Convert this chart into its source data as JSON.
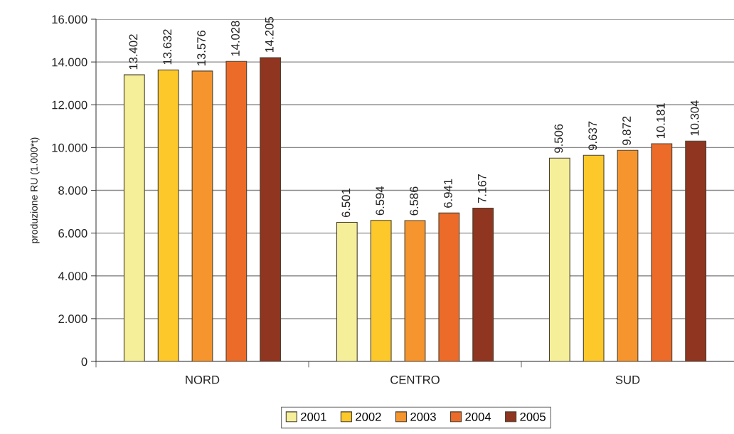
{
  "chart_data": {
    "type": "bar",
    "ylabel": "produzione RU (1.000*t)",
    "categories": [
      "NORD",
      "CENTRO",
      "SUD"
    ],
    "series": [
      {
        "name": "2001",
        "color": "#f5ef9a",
        "values": [
          13402,
          6501,
          9506
        ],
        "value_labels": [
          "13.402",
          "6.501",
          "9.506"
        ]
      },
      {
        "name": "2002",
        "color": "#fcc82a",
        "values": [
          13632,
          6594,
          9637
        ],
        "value_labels": [
          "13.632",
          "6.594",
          "9.637"
        ]
      },
      {
        "name": "2003",
        "color": "#f6952d",
        "values": [
          13576,
          6586,
          9872
        ],
        "value_labels": [
          "13.576",
          "6.586",
          "9.872"
        ]
      },
      {
        "name": "2004",
        "color": "#ed6b29",
        "values": [
          14028,
          6941,
          10181
        ],
        "value_labels": [
          "14.028",
          "6.941",
          "10.181"
        ]
      },
      {
        "name": "2005",
        "color": "#8f3520",
        "values": [
          14205,
          7167,
          10304
        ],
        "value_labels": [
          "14.205",
          "7.167",
          "10.304"
        ]
      }
    ],
    "ylim": [
      0,
      16000
    ],
    "yticks": [
      0,
      {
        "value": 2000,
        "label": "2.000"
      },
      {
        "value": 4000,
        "label": "4.000"
      },
      {
        "value": 6000,
        "label": "6.000"
      },
      {
        "value": 8000,
        "label": "8.000"
      },
      {
        "value": 10000,
        "label": "10.000"
      },
      {
        "value": 12000,
        "label": "12.000"
      },
      {
        "value": 14000,
        "label": "14.000"
      },
      {
        "value": 16000,
        "label": "16.000"
      }
    ],
    "grid": "y",
    "legend": "bottom"
  }
}
